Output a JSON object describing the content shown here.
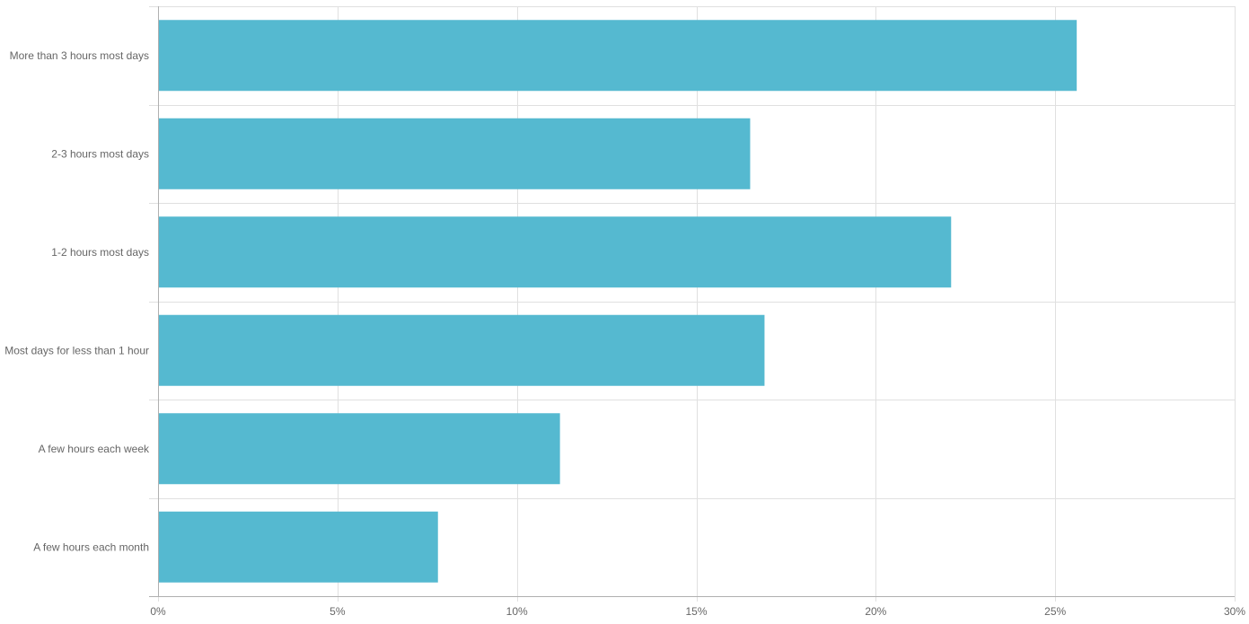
{
  "chart_data": {
    "type": "bar",
    "orientation": "horizontal",
    "categories": [
      "More than 3 hours most days",
      "2-3 hours most days",
      "1-2 hours most days",
      "Most days for less than 1 hour",
      "A few hours each week",
      "A few hours each month"
    ],
    "values": [
      25.6,
      16.5,
      22.1,
      16.9,
      11.2,
      7.8
    ],
    "x_ticks": [
      "0%",
      "5%",
      "10%",
      "15%",
      "20%",
      "25%",
      "30%"
    ],
    "xlim": [
      0,
      30
    ],
    "unit": "%",
    "title": "",
    "xlabel": "",
    "ylabel": "",
    "grid": true,
    "legend": "none",
    "colors": {
      "bar": "#55b9d0",
      "grid": "#e0e0e0",
      "axis": "#b0b0b0",
      "label": "#666666"
    }
  }
}
